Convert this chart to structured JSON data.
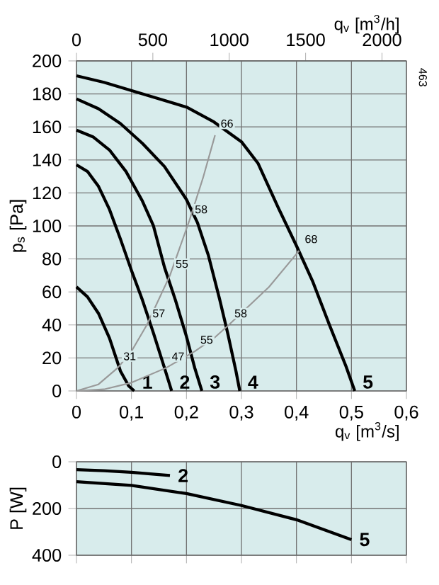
{
  "chart_data": [
    {
      "type": "line",
      "xlabel": "q$_{v}$ [m$^{3}$/s]",
      "ylabel": "p$_{s}$ [Pa]",
      "x2label": "q$_{v}$ [m$^{3}$/h]",
      "xlim": [
        0,
        0.6
      ],
      "xticks": [
        0,
        {
          "value": 0.1,
          "label": "0,1"
        },
        {
          "value": 0.2,
          "label": "0,2"
        },
        {
          "value": 0.3,
          "label": "0,3"
        },
        {
          "value": 0.4,
          "label": "0,4"
        },
        {
          "value": 0.5,
          "label": "0,5"
        },
        {
          "value": 0.6,
          "label": "0,6"
        }
      ],
      "x2lim": [
        0,
        2160
      ],
      "x2ticks": [
        0,
        500,
        1000,
        1500,
        2000
      ],
      "ylim": [
        0,
        200
      ],
      "yticks": [
        0,
        20,
        40,
        60,
        80,
        100,
        120,
        140,
        160,
        180,
        200
      ],
      "grid": true,
      "series": [
        {
          "name": "1",
          "color": "#000000",
          "x": [
            0,
            0.02,
            0.04,
            0.06,
            0.08,
            0.095,
            0.105
          ],
          "values": [
            63,
            57,
            47,
            32,
            12,
            3,
            0
          ]
        },
        {
          "name": "2",
          "color": "#000000",
          "x": [
            0,
            0.02,
            0.04,
            0.06,
            0.08,
            0.1,
            0.12,
            0.14,
            0.16,
            0.173
          ],
          "values": [
            137,
            133,
            124,
            110,
            92,
            73,
            55,
            35,
            14,
            0
          ]
        },
        {
          "name": "3",
          "color": "#000000",
          "x": [
            0,
            0.03,
            0.06,
            0.09,
            0.12,
            0.14,
            0.16,
            0.18,
            0.2,
            0.215,
            0.228
          ],
          "values": [
            158,
            154,
            146,
            133,
            115,
            100,
            75,
            55,
            33,
            14,
            0
          ]
        },
        {
          "name": "4",
          "color": "#000000",
          "x": [
            0,
            0.04,
            0.08,
            0.12,
            0.16,
            0.2,
            0.22,
            0.24,
            0.26,
            0.275,
            0.29,
            0.297
          ],
          "values": [
            177,
            171,
            162,
            150,
            136,
            116,
            102,
            82,
            56,
            35,
            12,
            0
          ]
        },
        {
          "name": "5",
          "color": "#000000",
          "x": [
            0,
            0.05,
            0.1,
            0.15,
            0.2,
            0.25,
            0.3,
            0.33,
            0.367,
            0.4,
            0.43,
            0.46,
            0.49,
            0.506
          ],
          "values": [
            191,
            187,
            182,
            177,
            172,
            163,
            151,
            138,
            111,
            88,
            66,
            40,
            15,
            0
          ]
        },
        {
          "color": "#999999",
          "x": [
            0,
            0.04,
            0.075,
            0.1,
            0.128,
            0.17,
            0.205,
            0.23,
            0.252
          ],
          "values": [
            0,
            4,
            14,
            24,
            40,
            70,
            103,
            129,
            155
          ]
        },
        {
          "color": "#999999",
          "x": [
            0,
            0.05,
            0.1,
            0.163,
            0.215,
            0.25,
            0.277,
            0.35,
            0.405
          ],
          "values": [
            0,
            1,
            5,
            14,
            24,
            32,
            40,
            63,
            85
          ]
        }
      ],
      "annotations": [
        {
          "text": "31",
          "x": 0.075,
          "y": 14
        },
        {
          "text": "57",
          "x": 0.128,
          "y": 40
        },
        {
          "text": "55",
          "x": 0.17,
          "y": 70
        },
        {
          "text": "58",
          "x": 0.205,
          "y": 103
        },
        {
          "text": "66",
          "x": 0.252,
          "y": 155
        },
        {
          "text": "47",
          "x": 0.163,
          "y": 14
        },
        {
          "text": "55",
          "x": 0.215,
          "y": 24
        },
        {
          "text": "58",
          "x": 0.277,
          "y": 40
        },
        {
          "text": "68",
          "x": 0.405,
          "y": 85
        },
        "463"
      ]
    },
    {
      "type": "line",
      "ylabel": "P [W]",
      "xlim": [
        0,
        0.6
      ],
      "xticks": [
        {
          "value": 0,
          "label": null
        },
        {
          "value": 0.1,
          "label": null
        },
        {
          "value": 0.2,
          "label": null
        },
        {
          "value": 0.3,
          "label": null
        },
        {
          "value": 0.4,
          "label": null
        },
        {
          "value": 0.5,
          "label": null
        },
        {
          "value": 0.6,
          "label": null
        }
      ],
      "ylim": [
        400,
        0
      ],
      "yticks": [
        0,
        200,
        400
      ],
      "grid": true,
      "tick_labels": "y",
      "series": [
        {
          "name": "2",
          "color": "#000000",
          "x": [
            0,
            0.05,
            0.1,
            0.15,
            0.17
          ],
          "values": [
            34,
            38,
            45,
            55,
            59
          ]
        },
        {
          "name": "5",
          "color": "#000000",
          "x": [
            0,
            0.1,
            0.2,
            0.3,
            0.4,
            0.5
          ],
          "values": [
            85,
            101,
            136,
            187,
            248,
            333
          ]
        }
      ]
    }
  ]
}
